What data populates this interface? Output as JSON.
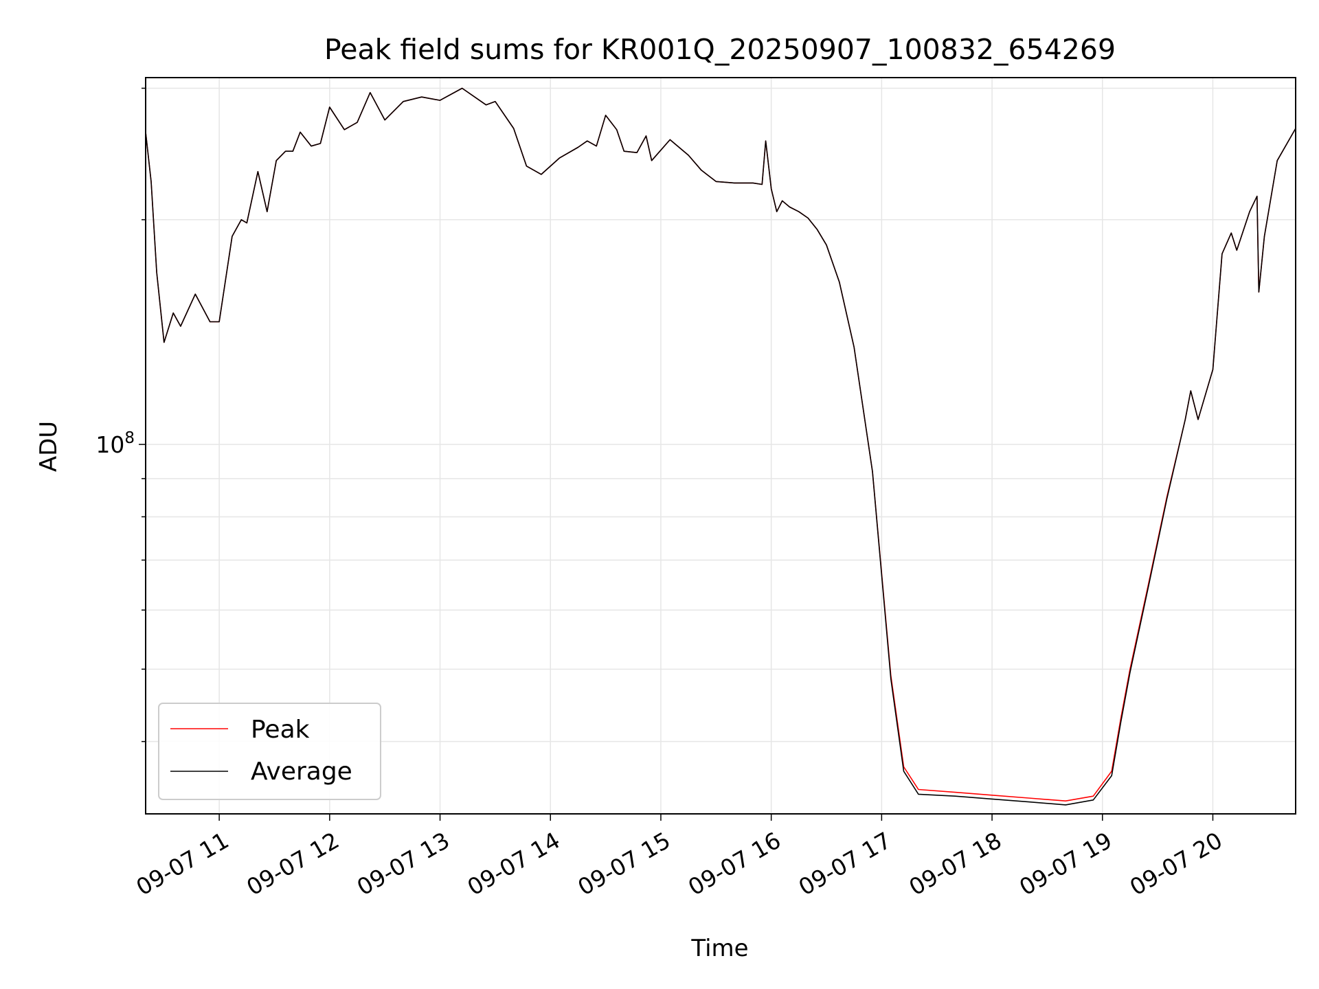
{
  "chart_data": {
    "type": "line",
    "title": "Peak field sums for KR001Q_20250907_100832_654269",
    "xlabel": "Time",
    "ylabel": "ADU",
    "yscale": "log",
    "grid": true,
    "legend_position": "lower-left",
    "x_range": [
      "2025-09-07 10:20",
      "2025-09-07 20:45"
    ],
    "ylim": [
      32000000,
      310000000
    ],
    "x_ticks": [
      {
        "t": "2025-09-07 11:00",
        "label": "09-07 11"
      },
      {
        "t": "2025-09-07 12:00",
        "label": "09-07 12"
      },
      {
        "t": "2025-09-07 13:00",
        "label": "09-07 13"
      },
      {
        "t": "2025-09-07 14:00",
        "label": "09-07 14"
      },
      {
        "t": "2025-09-07 15:00",
        "label": "09-07 15"
      },
      {
        "t": "2025-09-07 16:00",
        "label": "09-07 16"
      },
      {
        "t": "2025-09-07 17:00",
        "label": "09-07 17"
      },
      {
        "t": "2025-09-07 18:00",
        "label": "09-07 18"
      },
      {
        "t": "2025-09-07 19:00",
        "label": "09-07 19"
      },
      {
        "t": "2025-09-07 20:00",
        "label": "09-07 20"
      }
    ],
    "y_major_ticks": [
      {
        "value": 100000000,
        "base": "10",
        "exp": "8"
      }
    ],
    "y_minor_ticks": [
      40000000,
      50000000,
      60000000,
      70000000,
      80000000,
      90000000,
      200000000,
      300000000
    ],
    "series": [
      {
        "name": "Peak",
        "color": "#ff0000",
        "points": [
          [
            "2025-09-07 10:20",
            262000000
          ],
          [
            "2025-09-07 10:23",
            225000000
          ],
          [
            "2025-09-07 10:26",
            170000000
          ],
          [
            "2025-09-07 10:30",
            137000000
          ],
          [
            "2025-09-07 10:35",
            150000000
          ],
          [
            "2025-09-07 10:39",
            144000000
          ],
          [
            "2025-09-07 10:47",
            159000000
          ],
          [
            "2025-09-07 10:55",
            146000000
          ],
          [
            "2025-09-07 11:00",
            146000000
          ],
          [
            "2025-09-07 11:07",
            190000000
          ],
          [
            "2025-09-07 11:12",
            200000000
          ],
          [
            "2025-09-07 11:15",
            198000000
          ],
          [
            "2025-09-07 11:21",
            232000000
          ],
          [
            "2025-09-07 11:26",
            205000000
          ],
          [
            "2025-09-07 11:31",
            240000000
          ],
          [
            "2025-09-07 11:36",
            247000000
          ],
          [
            "2025-09-07 11:40",
            247000000
          ],
          [
            "2025-09-07 11:44",
            262000000
          ],
          [
            "2025-09-07 11:50",
            251000000
          ],
          [
            "2025-09-07 11:55",
            253000000
          ],
          [
            "2025-09-07 12:00",
            283000000
          ],
          [
            "2025-09-07 12:08",
            264000000
          ],
          [
            "2025-09-07 12:15",
            270000000
          ],
          [
            "2025-09-07 12:22",
            296000000
          ],
          [
            "2025-09-07 12:30",
            272000000
          ],
          [
            "2025-09-07 12:40",
            288000000
          ],
          [
            "2025-09-07 12:50",
            292000000
          ],
          [
            "2025-09-07 13:00",
            289000000
          ],
          [
            "2025-09-07 13:12",
            300000000
          ],
          [
            "2025-09-07 13:25",
            285000000
          ],
          [
            "2025-09-07 13:30",
            288000000
          ],
          [
            "2025-09-07 13:40",
            265000000
          ],
          [
            "2025-09-07 13:47",
            236000000
          ],
          [
            "2025-09-07 13:55",
            230000000
          ],
          [
            "2025-09-07 14:05",
            242000000
          ],
          [
            "2025-09-07 14:15",
            250000000
          ],
          [
            "2025-09-07 14:20",
            255000000
          ],
          [
            "2025-09-07 14:25",
            251000000
          ],
          [
            "2025-09-07 14:30",
            276000000
          ],
          [
            "2025-09-07 14:36",
            264000000
          ],
          [
            "2025-09-07 14:40",
            247000000
          ],
          [
            "2025-09-07 14:47",
            246000000
          ],
          [
            "2025-09-07 14:52",
            259000000
          ],
          [
            "2025-09-07 14:55",
            240000000
          ],
          [
            "2025-09-07 15:05",
            256000000
          ],
          [
            "2025-09-07 15:15",
            244000000
          ],
          [
            "2025-09-07 15:22",
            233000000
          ],
          [
            "2025-09-07 15:30",
            225000000
          ],
          [
            "2025-09-07 15:40",
            224000000
          ],
          [
            "2025-09-07 15:50",
            224000000
          ],
          [
            "2025-09-07 15:55",
            223000000
          ],
          [
            "2025-09-07 15:57",
            255000000
          ],
          [
            "2025-09-07 16:00",
            220000000
          ],
          [
            "2025-09-07 16:03",
            205000000
          ],
          [
            "2025-09-07 16:06",
            212000000
          ],
          [
            "2025-09-07 16:10",
            208000000
          ],
          [
            "2025-09-07 16:15",
            205000000
          ],
          [
            "2025-09-07 16:20",
            201000000
          ],
          [
            "2025-09-07 16:25",
            194000000
          ],
          [
            "2025-09-07 16:30",
            185000000
          ],
          [
            "2025-09-07 16:37",
            165000000
          ],
          [
            "2025-09-07 16:45",
            135000000
          ],
          [
            "2025-09-07 16:55",
            92000000
          ],
          [
            "2025-09-07 17:05",
            49000000
          ],
          [
            "2025-09-07 17:12",
            37000000
          ],
          [
            "2025-09-07 17:20",
            34500000
          ],
          [
            "2025-09-07 17:40",
            34200000
          ],
          [
            "2025-09-07 18:00",
            33900000
          ],
          [
            "2025-09-07 18:20",
            33600000
          ],
          [
            "2025-09-07 18:40",
            33300000
          ],
          [
            "2025-09-07 18:55",
            33800000
          ],
          [
            "2025-09-07 19:05",
            36500000
          ],
          [
            "2025-09-07 19:10",
            43000000
          ],
          [
            "2025-09-07 19:15",
            50000000
          ],
          [
            "2025-09-07 19:25",
            65000000
          ],
          [
            "2025-09-07 19:35",
            85000000
          ],
          [
            "2025-09-07 19:45",
            108000000
          ],
          [
            "2025-09-07 19:48",
            118000000
          ],
          [
            "2025-09-07 19:52",
            108000000
          ],
          [
            "2025-09-07 20:00",
            126000000
          ],
          [
            "2025-09-07 20:05",
            180000000
          ],
          [
            "2025-09-07 20:10",
            192000000
          ],
          [
            "2025-09-07 20:13",
            182000000
          ],
          [
            "2025-09-07 20:20",
            205000000
          ],
          [
            "2025-09-07 20:24",
            215000000
          ],
          [
            "2025-09-07 20:25",
            160000000
          ],
          [
            "2025-09-07 20:28",
            190000000
          ],
          [
            "2025-09-07 20:35",
            240000000
          ],
          [
            "2025-09-07 20:45",
            265000000
          ]
        ]
      },
      {
        "name": "Average",
        "color": "#000000",
        "points": [
          [
            "2025-09-07 10:20",
            262000000
          ],
          [
            "2025-09-07 10:23",
            225000000
          ],
          [
            "2025-09-07 10:26",
            170000000
          ],
          [
            "2025-09-07 10:30",
            137000000
          ],
          [
            "2025-09-07 10:35",
            150000000
          ],
          [
            "2025-09-07 10:39",
            144000000
          ],
          [
            "2025-09-07 10:47",
            159000000
          ],
          [
            "2025-09-07 10:55",
            146000000
          ],
          [
            "2025-09-07 11:00",
            146000000
          ],
          [
            "2025-09-07 11:07",
            190000000
          ],
          [
            "2025-09-07 11:12",
            200000000
          ],
          [
            "2025-09-07 11:15",
            198000000
          ],
          [
            "2025-09-07 11:21",
            232000000
          ],
          [
            "2025-09-07 11:26",
            205000000
          ],
          [
            "2025-09-07 11:31",
            240000000
          ],
          [
            "2025-09-07 11:36",
            247000000
          ],
          [
            "2025-09-07 11:40",
            247000000
          ],
          [
            "2025-09-07 11:44",
            262000000
          ],
          [
            "2025-09-07 11:50",
            251000000
          ],
          [
            "2025-09-07 11:55",
            253000000
          ],
          [
            "2025-09-07 12:00",
            283000000
          ],
          [
            "2025-09-07 12:08",
            264000000
          ],
          [
            "2025-09-07 12:15",
            270000000
          ],
          [
            "2025-09-07 12:22",
            296000000
          ],
          [
            "2025-09-07 12:30",
            272000000
          ],
          [
            "2025-09-07 12:40",
            288000000
          ],
          [
            "2025-09-07 12:50",
            292000000
          ],
          [
            "2025-09-07 13:00",
            289000000
          ],
          [
            "2025-09-07 13:12",
            300000000
          ],
          [
            "2025-09-07 13:25",
            285000000
          ],
          [
            "2025-09-07 13:30",
            288000000
          ],
          [
            "2025-09-07 13:40",
            265000000
          ],
          [
            "2025-09-07 13:47",
            236000000
          ],
          [
            "2025-09-07 13:55",
            230000000
          ],
          [
            "2025-09-07 14:05",
            242000000
          ],
          [
            "2025-09-07 14:15",
            250000000
          ],
          [
            "2025-09-07 14:20",
            255000000
          ],
          [
            "2025-09-07 14:25",
            251000000
          ],
          [
            "2025-09-07 14:30",
            276000000
          ],
          [
            "2025-09-07 14:36",
            264000000
          ],
          [
            "2025-09-07 14:40",
            247000000
          ],
          [
            "2025-09-07 14:47",
            246000000
          ],
          [
            "2025-09-07 14:52",
            259000000
          ],
          [
            "2025-09-07 14:55",
            240000000
          ],
          [
            "2025-09-07 15:05",
            256000000
          ],
          [
            "2025-09-07 15:15",
            244000000
          ],
          [
            "2025-09-07 15:22",
            233000000
          ],
          [
            "2025-09-07 15:30",
            225000000
          ],
          [
            "2025-09-07 15:40",
            224000000
          ],
          [
            "2025-09-07 15:50",
            224000000
          ],
          [
            "2025-09-07 15:55",
            223000000
          ],
          [
            "2025-09-07 15:57",
            255000000
          ],
          [
            "2025-09-07 16:00",
            220000000
          ],
          [
            "2025-09-07 16:03",
            205000000
          ],
          [
            "2025-09-07 16:06",
            212000000
          ],
          [
            "2025-09-07 16:10",
            208000000
          ],
          [
            "2025-09-07 16:15",
            205000000
          ],
          [
            "2025-09-07 16:20",
            201000000
          ],
          [
            "2025-09-07 16:25",
            194000000
          ],
          [
            "2025-09-07 16:30",
            185000000
          ],
          [
            "2025-09-07 16:37",
            165000000
          ],
          [
            "2025-09-07 16:45",
            135000000
          ],
          [
            "2025-09-07 16:55",
            92000000
          ],
          [
            "2025-09-07 17:05",
            48500000
          ],
          [
            "2025-09-07 17:12",
            36500000
          ],
          [
            "2025-09-07 17:20",
            34000000
          ],
          [
            "2025-09-07 17:40",
            33800000
          ],
          [
            "2025-09-07 18:00",
            33500000
          ],
          [
            "2025-09-07 18:20",
            33200000
          ],
          [
            "2025-09-07 18:40",
            32900000
          ],
          [
            "2025-09-07 18:55",
            33400000
          ],
          [
            "2025-09-07 19:05",
            36000000
          ],
          [
            "2025-09-07 19:10",
            42500000
          ],
          [
            "2025-09-07 19:15",
            49500000
          ],
          [
            "2025-09-07 19:25",
            64500000
          ],
          [
            "2025-09-07 19:35",
            84500000
          ],
          [
            "2025-09-07 19:45",
            108000000
          ],
          [
            "2025-09-07 19:48",
            118000000
          ],
          [
            "2025-09-07 19:52",
            108000000
          ],
          [
            "2025-09-07 20:00",
            126000000
          ],
          [
            "2025-09-07 20:05",
            180000000
          ],
          [
            "2025-09-07 20:10",
            192000000
          ],
          [
            "2025-09-07 20:13",
            182000000
          ],
          [
            "2025-09-07 20:20",
            205000000
          ],
          [
            "2025-09-07 20:24",
            215000000
          ],
          [
            "2025-09-07 20:25",
            160000000
          ],
          [
            "2025-09-07 20:28",
            190000000
          ],
          [
            "2025-09-07 20:35",
            240000000
          ],
          [
            "2025-09-07 20:45",
            265000000
          ]
        ]
      }
    ]
  }
}
